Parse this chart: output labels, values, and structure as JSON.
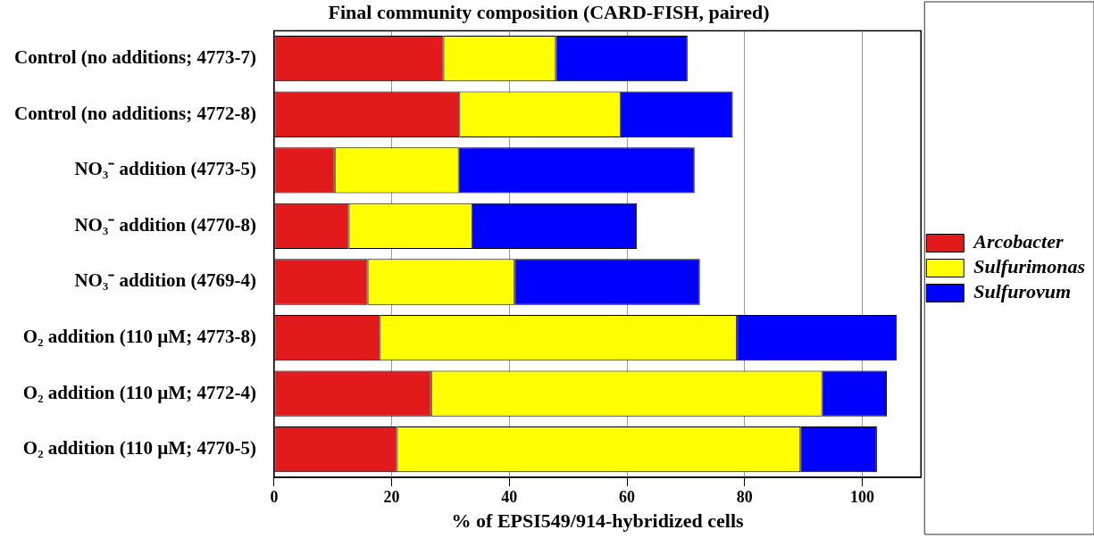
{
  "chart_data": {
    "type": "bar",
    "orientation": "horizontal",
    "stacked": true,
    "title": "Final community composition (CARD-FISH, paired)",
    "xlabel": "% of EPSI549/914-hybridized cells",
    "categories": [
      "Control (no additions; 4773-7)",
      "Control (no additions; 4772-8)",
      "NO₃⁻ addition (4773-5)",
      "NO₃⁻ addition (4770-8)",
      "NO₃⁻ addition (4769-4)",
      "O₂ addition (110 µM; 4773-8)",
      "O₂ addition (110 µM; 4772-4)",
      "O₂ addition (110 µM; 4770-5)"
    ],
    "series": [
      {
        "name": "Arcobacter",
        "color": "#e31a1c",
        "values": [
          28.8,
          31.5,
          10.3,
          12.7,
          15.9,
          18.0,
          26.7,
          20.9
        ]
      },
      {
        "name": "Sulfurimonas",
        "color": "#ffff00",
        "values": [
          19.1,
          27.4,
          21.1,
          21.0,
          25.0,
          60.7,
          66.5,
          68.6
        ]
      },
      {
        "name": "Sulfurovum",
        "color": "#0000ff",
        "values": [
          22.4,
          19.1,
          40.1,
          28.0,
          31.5,
          27.2,
          11.0,
          13.0
        ]
      }
    ],
    "xlim": [
      0,
      110
    ],
    "xticks": [
      0,
      20,
      40,
      60,
      80,
      100
    ],
    "grid": "x",
    "legend": "right"
  }
}
